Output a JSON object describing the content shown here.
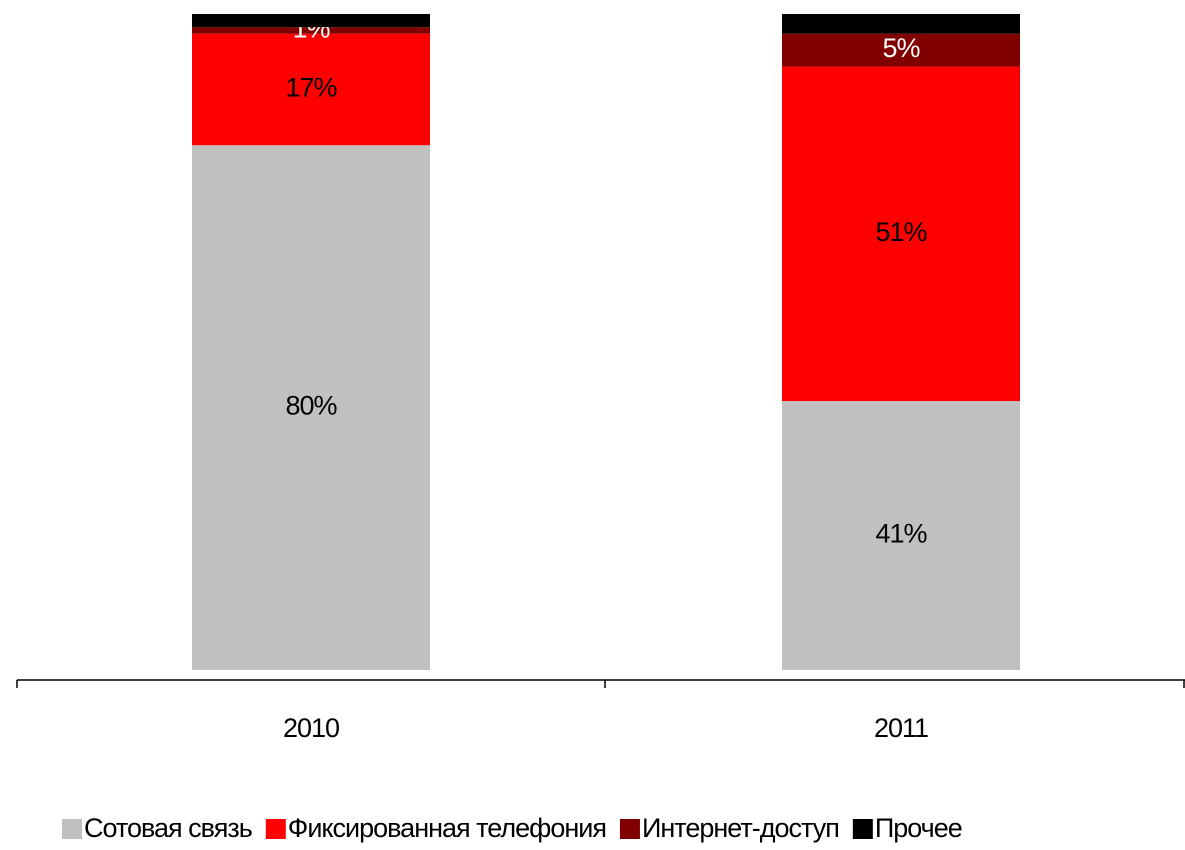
{
  "chart_data": {
    "type": "stacked_bar",
    "categories": [
      "2010",
      "2011"
    ],
    "ylim": [
      0,
      100
    ],
    "series": [
      {
        "name": "Сотовая связь",
        "color": "#c0c0c0",
        "values": [
          80,
          41
        ],
        "value_labels": [
          "80%",
          "41%"
        ],
        "label_color": "#000000"
      },
      {
        "name": "Фиксированная телефония",
        "color": "#ff0000",
        "values": [
          17,
          51
        ],
        "value_labels": [
          "17%",
          "51%"
        ],
        "label_color": "#000000"
      },
      {
        "name": "Интернет-доступ",
        "color": "#800000",
        "values": [
          1,
          5
        ],
        "value_labels": [
          "1%",
          "5%"
        ],
        "label_color": "#ffffff"
      },
      {
        "name": "Прочее",
        "color": "#000000",
        "values": [
          2,
          3
        ]
      }
    ]
  }
}
